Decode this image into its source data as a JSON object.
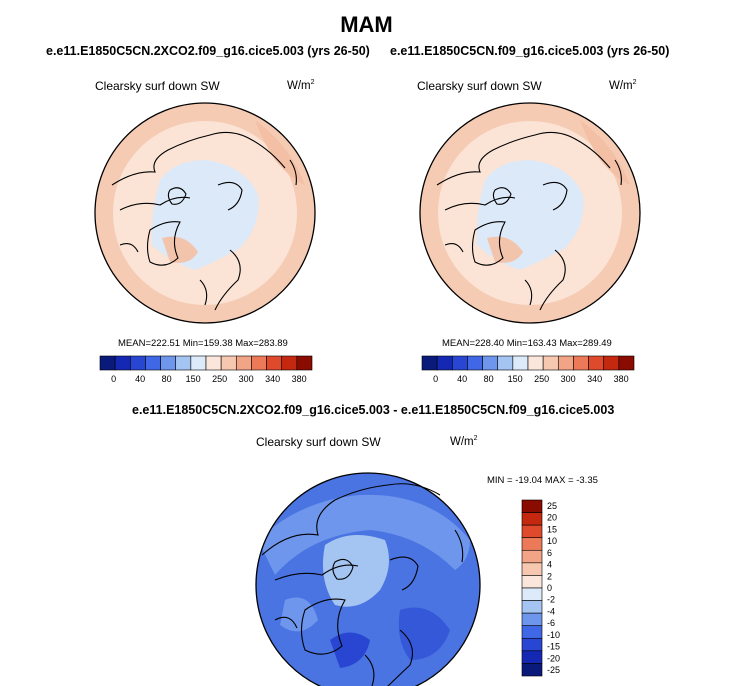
{
  "main_title": "MAM",
  "panels": [
    {
      "case_title": "e.e11.E1850C5CN.2XCO2.f09_g16.cice5.003 (yrs 26-50)",
      "variable": "Clearsky surf down SW",
      "units": "W/m",
      "units_exp": "2",
      "stats": {
        "mean_label": "MEAN=",
        "mean": "222.51",
        "min_label": "Min=",
        "min": "159.38",
        "max_label": "Max=",
        "max": "283.89"
      }
    },
    {
      "case_title": "e.e11.E1850C5CN.f09_g16.cice5.003 (yrs 26-50)",
      "variable": "Clearsky surf down SW",
      "units": "W/m",
      "units_exp": "2",
      "stats": {
        "mean_label": "MEAN=",
        "mean": "228.40",
        "min_label": "Min=",
        "min": "163.43",
        "max_label": "Max=",
        "max": "289.49"
      }
    }
  ],
  "diff_panel": {
    "title": "e.e11.E1850C5CN.2XCO2.f09_g16.cice5.003 - e.e11.E1850C5CN.f09_g16.cice5.003",
    "variable": "Clearsky surf down SW",
    "units": "W/m",
    "units_exp": "2",
    "minmax": "MIN = -19.04 MAX =  -3.35"
  },
  "colors": {
    "abs_scale": [
      "#0a1a7a",
      "#1428b4",
      "#2846d2",
      "#4068e6",
      "#6e96ec",
      "#a4c4f2",
      "#dceafa",
      "#fbe6dc",
      "#f7c8b0",
      "#f2a486",
      "#ec7a58",
      "#e04a2c",
      "#c4280e",
      "#8a0c00"
    ],
    "diff_scale": [
      "#0a1a7a",
      "#1428b4",
      "#2846d2",
      "#4068e6",
      "#6e96ec",
      "#a4c4f2",
      "#dceafa",
      "#fbe6dc",
      "#f7c8b0",
      "#f2a486",
      "#ec7a58",
      "#e04a2c",
      "#c4280e",
      "#8a0c00"
    ]
  },
  "chart_data": [
    {
      "type": "contour-map",
      "projection": "north-polar-stereographic",
      "title": "e.e11.E1850C5CN.2XCO2.f09_g16.cice5.003 (yrs 26-50)",
      "variable": "Clearsky surf down SW",
      "units": "W/m2",
      "colorbar_ticks": [
        "0",
        "40",
        "80",
        "150",
        "250",
        "300",
        "340",
        "380"
      ],
      "mean": 222.51,
      "min": 159.38,
      "max": 283.89
    },
    {
      "type": "contour-map",
      "projection": "north-polar-stereographic",
      "title": "e.e11.E1850C5CN.f09_g16.cice5.003 (yrs 26-50)",
      "variable": "Clearsky surf down SW",
      "units": "W/m2",
      "colorbar_ticks": [
        "0",
        "40",
        "80",
        "150",
        "250",
        "300",
        "340",
        "380"
      ],
      "mean": 228.4,
      "min": 163.43,
      "max": 289.49
    },
    {
      "type": "contour-map",
      "projection": "north-polar-stereographic",
      "title": "e.e11.E1850C5CN.2XCO2.f09_g16.cice5.003 - e.e11.E1850C5CN.f09_g16.cice5.003",
      "variable": "Clearsky surf down SW",
      "units": "W/m2",
      "colorbar_ticks": [
        "25",
        "20",
        "15",
        "10",
        "6",
        "4",
        "2",
        "0",
        "-2",
        "-4",
        "-6",
        "-10",
        "-15",
        "-20",
        "-25"
      ],
      "min": -19.04,
      "max": -3.35
    }
  ]
}
